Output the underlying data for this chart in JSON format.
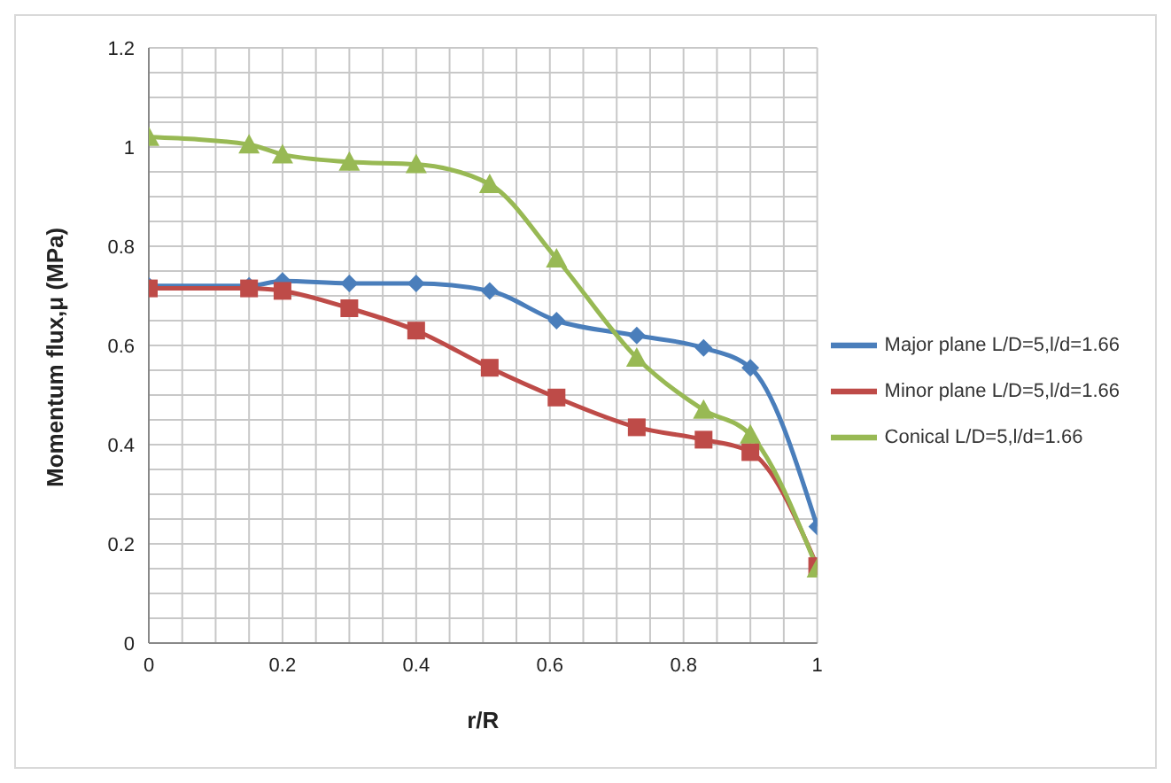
{
  "chart_data": {
    "type": "line",
    "xlabel": "r/R",
    "ylabel": "Momentum flux,μ (MPa)",
    "x": [
      0,
      0.15,
      0.2,
      0.3,
      0.4,
      0.51,
      0.61,
      0.73,
      0.83,
      0.9,
      1
    ],
    "series": [
      {
        "name": "Major plane L/D=5,l/d=1.66",
        "color": "#4a7ebb",
        "marker": "diamond",
        "values": [
          0.72,
          0.72,
          0.73,
          0.725,
          0.725,
          0.71,
          0.65,
          0.62,
          0.595,
          0.555,
          0.235
        ]
      },
      {
        "name": "Minor plane L/D=5,l/d=1.66",
        "color": "#be4b48",
        "marker": "square",
        "values": [
          0.715,
          0.715,
          0.71,
          0.675,
          0.63,
          0.555,
          0.495,
          0.435,
          0.41,
          0.385,
          0.155
        ]
      },
      {
        "name": "Conical L/D=5,l/d=1.66",
        "color": "#98b954",
        "marker": "triangle",
        "values": [
          1.02,
          1.005,
          0.985,
          0.97,
          0.965,
          0.925,
          0.775,
          0.575,
          0.47,
          0.42,
          0.15
        ]
      }
    ],
    "xlim": [
      0,
      1
    ],
    "xticks": [
      0,
      {
        "value": 0.05,
        "label": null
      },
      {
        "value": 0.1,
        "label": null
      },
      {
        "value": 0.15,
        "label": null
      },
      0.2,
      {
        "value": 0.25,
        "label": null
      },
      {
        "value": 0.3,
        "label": null
      },
      {
        "value": 0.35,
        "label": null
      },
      0.4,
      {
        "value": 0.45,
        "label": null
      },
      {
        "value": 0.5,
        "label": null
      },
      {
        "value": 0.55,
        "label": null
      },
      0.6,
      {
        "value": 0.65,
        "label": null
      },
      {
        "value": 0.7,
        "label": null
      },
      {
        "value": 0.75,
        "label": null
      },
      0.8,
      {
        "value": 0.85,
        "label": null
      },
      {
        "value": 0.9,
        "label": null
      },
      {
        "value": 0.95,
        "label": null
      },
      1
    ],
    "ylim": [
      0,
      1.2
    ],
    "yticks": [
      0,
      {
        "value": 0.05,
        "label": null
      },
      {
        "value": 0.1,
        "label": null
      },
      {
        "value": 0.15,
        "label": null
      },
      0.2,
      {
        "value": 0.25,
        "label": null
      },
      {
        "value": 0.3,
        "label": null
      },
      {
        "value": 0.35,
        "label": null
      },
      0.4,
      {
        "value": 0.45,
        "label": null
      },
      {
        "value": 0.5,
        "label": null
      },
      {
        "value": 0.55,
        "label": null
      },
      0.6,
      {
        "value": 0.65,
        "label": null
      },
      {
        "value": 0.7,
        "label": null
      },
      {
        "value": 0.75,
        "label": null
      },
      0.8,
      {
        "value": 0.85,
        "label": null
      },
      {
        "value": 0.9,
        "label": null
      },
      {
        "value": 0.95,
        "label": null
      },
      1,
      {
        "value": 1.05,
        "label": null
      },
      {
        "value": 1.1,
        "label": null
      },
      {
        "value": 1.15,
        "label": null
      },
      1.2
    ],
    "grid": true,
    "legend": "right"
  }
}
